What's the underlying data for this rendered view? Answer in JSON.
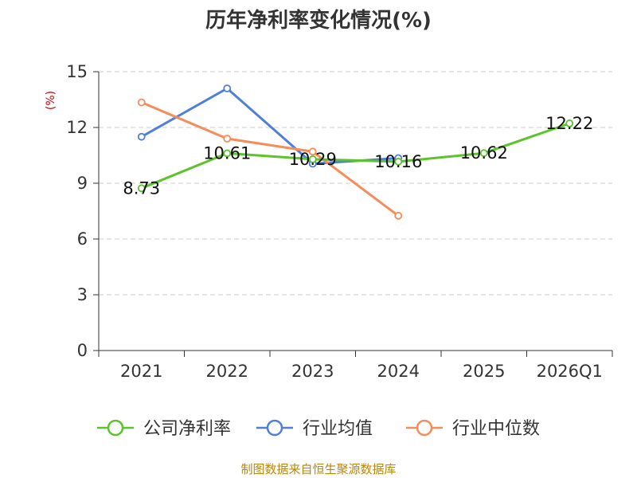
{
  "chart_data": {
    "type": "line",
    "title": "历年净利率变化情况(%)",
    "ylabel": "(%)",
    "xlabel": "",
    "categories": [
      "2021",
      "2022",
      "2023",
      "2024",
      "2025",
      "2026Q1"
    ],
    "ylim": [
      0,
      15
    ],
    "yticks": [
      0,
      3,
      6,
      9,
      12,
      15
    ],
    "grid": true,
    "legend_position": "bottom",
    "series": [
      {
        "name": "公司净利率",
        "color": "#5cc42a",
        "values": [
          8.73,
          10.61,
          10.29,
          10.16,
          10.62,
          12.22
        ],
        "labels": [
          "8.73",
          "10.61",
          "10.29",
          "10.16",
          "10.62",
          "12.22"
        ]
      },
      {
        "name": "行业均值",
        "color": "#4f7fd9",
        "values": [
          11.5,
          14.1,
          10.05,
          10.35,
          null,
          null
        ]
      },
      {
        "name": "行业中位数",
        "color": "#f58c5a",
        "values": [
          13.35,
          11.4,
          10.7,
          7.25,
          null,
          null
        ]
      }
    ]
  },
  "colors": {
    "axis": "#333333",
    "grid": "#cccccc",
    "ylabel": "#cc0000",
    "source": "#b8860b"
  },
  "source_text": "制图数据来自恒生聚源数据库"
}
